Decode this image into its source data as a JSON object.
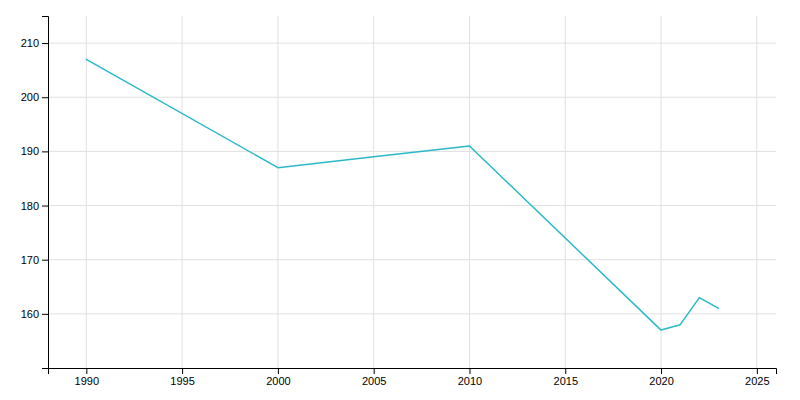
{
  "chart_data": {
    "type": "line",
    "x": [
      1990,
      2000,
      2005,
      2010,
      2020,
      2021,
      2022,
      2023
    ],
    "values": [
      207,
      187,
      189,
      191,
      157,
      158,
      163,
      161
    ],
    "color": "#29b9c9",
    "xlim": [
      1988,
      2026
    ],
    "ylim": [
      150,
      215
    ],
    "xticks": [
      1990,
      1995,
      2000,
      2005,
      2010,
      2015,
      2020,
      2025
    ],
    "yticks": [
      160,
      170,
      180,
      190,
      200,
      210
    ],
    "grid": true
  }
}
